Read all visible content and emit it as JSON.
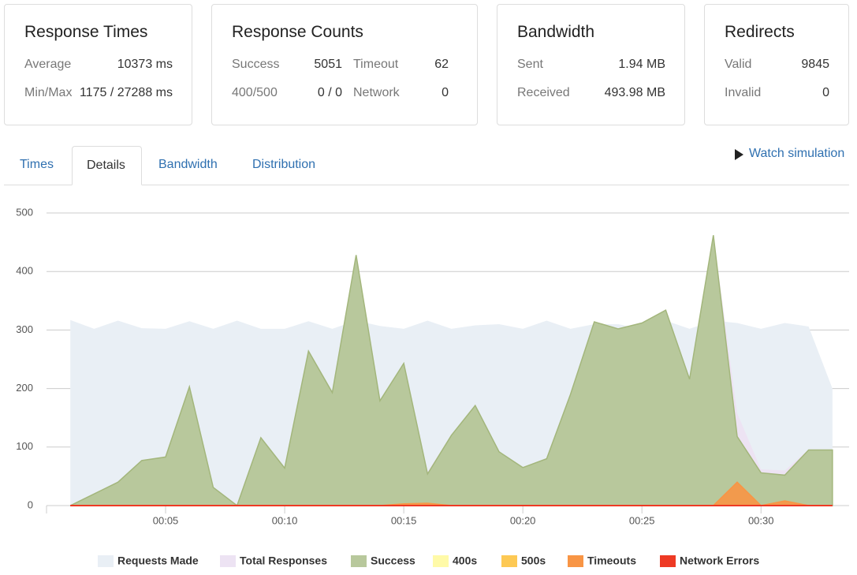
{
  "cards": [
    {
      "title": "Response Times",
      "rows": [
        [
          "Average",
          "10373 ms"
        ],
        [
          "Min/Max",
          "1175 / 27288 ms"
        ]
      ]
    },
    {
      "title": "Response Counts",
      "rows": [
        [
          "Success",
          "5051",
          "Timeout",
          "62"
        ],
        [
          "400/500",
          "0 / 0",
          "Network",
          "0"
        ]
      ]
    },
    {
      "title": "Bandwidth",
      "rows": [
        [
          "Sent",
          "1.94 MB"
        ],
        [
          "Received",
          "493.98 MB"
        ]
      ]
    },
    {
      "title": "Redirects",
      "rows": [
        [
          "Valid",
          "9845"
        ],
        [
          "Invalid",
          "0"
        ]
      ]
    }
  ],
  "tabs": [
    "Times",
    "Details",
    "Bandwidth",
    "Distribution"
  ],
  "active_tab": 1,
  "watch_link": "Watch simulation",
  "chart_data": {
    "type": "area",
    "x": [
      1,
      2,
      3,
      4,
      5,
      6,
      7,
      8,
      9,
      10,
      11,
      12,
      13,
      14,
      15,
      16,
      17,
      18,
      19,
      20,
      21,
      22,
      23,
      24,
      25,
      26,
      27,
      28,
      29,
      30,
      31,
      32,
      33
    ],
    "xlim": [
      0,
      33.7
    ],
    "xticks": [
      {
        "value": 5,
        "label": "00:05"
      },
      {
        "value": 10,
        "label": "00:10"
      },
      {
        "value": 15,
        "label": "00:15"
      },
      {
        "value": 20,
        "label": "00:20"
      },
      {
        "value": 25,
        "label": "00:25"
      },
      {
        "value": 30,
        "label": "00:30"
      }
    ],
    "ylim": [
      0,
      500
    ],
    "yticks": [
      0,
      100,
      200,
      300,
      400,
      500
    ],
    "grid": true,
    "legend": "bottom",
    "series": [
      {
        "name": "Requests Made",
        "color": "#e9eff5",
        "values": [
          317,
          302,
          316,
          303,
          302,
          315,
          302,
          316,
          302,
          302,
          315,
          302,
          316,
          307,
          302,
          316,
          302,
          308,
          310,
          302,
          316,
          302,
          310,
          310,
          302,
          316,
          302,
          316,
          312,
          302,
          312,
          306,
          200
        ]
      },
      {
        "name": "Total Responses",
        "color": "#ede3f3",
        "values": [
          0,
          20,
          40,
          77,
          83,
          203,
          31,
          0,
          116,
          64,
          264,
          193,
          428,
          179,
          243,
          58,
          120,
          171,
          92,
          65,
          80,
          190,
          314,
          302,
          312,
          334,
          216,
          463,
          158,
          62,
          60,
          96,
          95
        ]
      },
      {
        "name": "Success",
        "color": "#b8c89c",
        "values": [
          0,
          20,
          40,
          77,
          83,
          203,
          31,
          0,
          116,
          64,
          264,
          193,
          428,
          179,
          243,
          54,
          120,
          171,
          92,
          65,
          80,
          190,
          314,
          302,
          312,
          334,
          216,
          462,
          118,
          56,
          52,
          95,
          95
        ]
      },
      {
        "name": "400s",
        "color": "#fffaa8",
        "values": [
          0,
          0,
          0,
          0,
          0,
          0,
          0,
          0,
          0,
          0,
          0,
          0,
          0,
          0,
          0,
          0,
          0,
          0,
          0,
          0,
          0,
          0,
          0,
          0,
          0,
          0,
          0,
          0,
          0,
          0,
          0,
          0,
          0
        ]
      },
      {
        "name": "500s",
        "color": "#fdc954",
        "values": [
          0,
          0,
          0,
          0,
          0,
          0,
          0,
          0,
          0,
          0,
          0,
          0,
          0,
          0,
          0,
          0,
          0,
          0,
          0,
          0,
          0,
          0,
          0,
          0,
          0,
          0,
          0,
          0,
          0,
          0,
          0,
          0,
          0
        ]
      },
      {
        "name": "Timeouts",
        "color": "#f89545",
        "values": [
          0,
          0,
          0,
          0,
          0,
          0,
          0,
          0,
          0,
          0,
          0,
          0,
          0,
          0,
          3,
          4,
          0,
          0,
          0,
          0,
          0,
          0,
          0,
          0,
          0,
          0,
          0,
          0,
          40,
          0,
          8,
          0,
          0
        ]
      },
      {
        "name": "Network Errors",
        "color": "#ee3a24",
        "values": [
          0,
          0,
          0,
          0,
          0,
          0,
          0,
          0,
          0,
          0,
          0,
          0,
          0,
          0,
          0,
          0,
          0,
          0,
          0,
          0,
          0,
          0,
          0,
          0,
          0,
          0,
          0,
          0,
          0,
          0,
          0,
          0,
          0
        ]
      }
    ]
  }
}
